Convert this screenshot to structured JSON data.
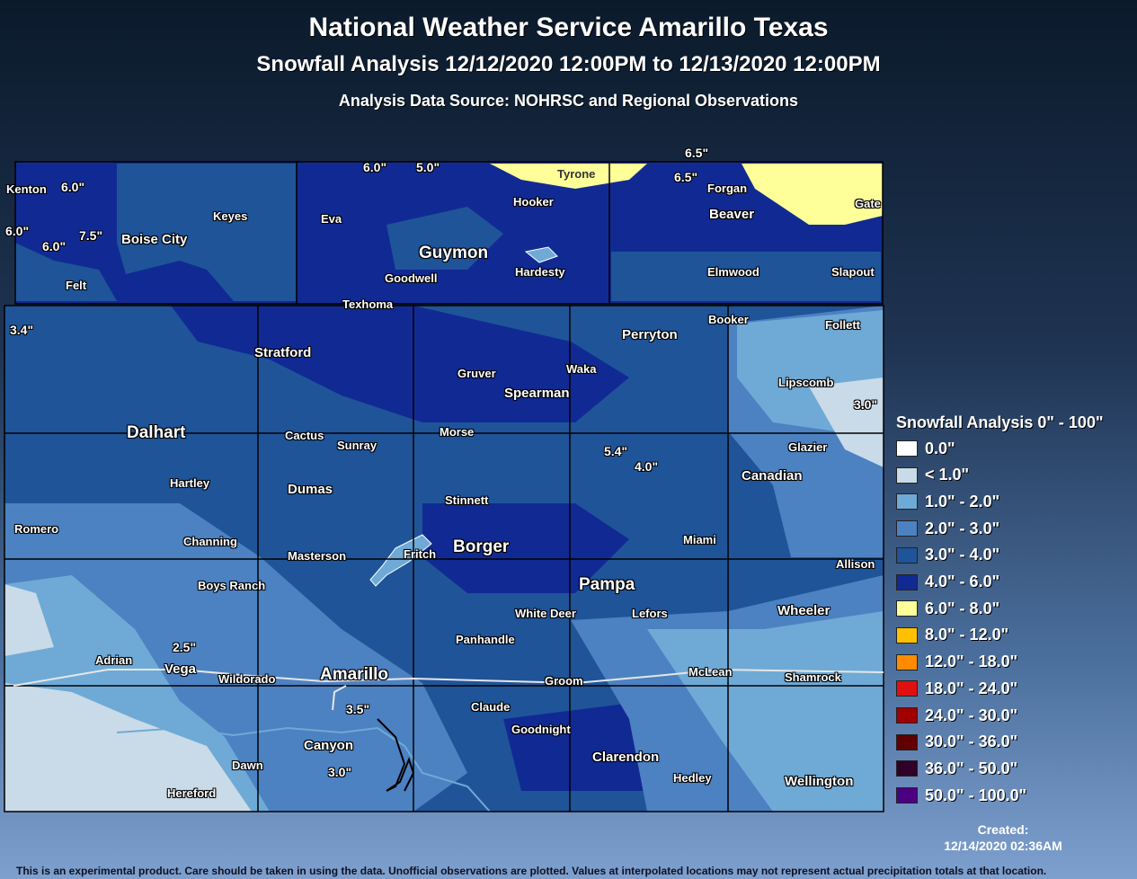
{
  "title": "National Weather Service Amarillo Texas",
  "subtitle": "Snowfall Analysis 12/12/2020 12:00PM to 12/13/2020 12:00PM",
  "source": "Analysis Data Source: NOHRSC and Regional Observations",
  "legend": {
    "title": "Snowfall Analysis 0\" - 100\"",
    "items": [
      {
        "label": "0.0\"",
        "color": "#ffffff"
      },
      {
        "label": "< 1.0\"",
        "color": "#c9dbe8"
      },
      {
        "label": "1.0\" - 2.0\"",
        "color": "#6faad6"
      },
      {
        "label": "2.0\" - 3.0\"",
        "color": "#4c82c2"
      },
      {
        "label": "3.0\" - 4.0\"",
        "color": "#1f5499"
      },
      {
        "label": "4.0\" - 6.0\"",
        "color": "#112a93"
      },
      {
        "label": "6.0\" - 8.0\"",
        "color": "#ffff99"
      },
      {
        "label": "8.0\" - 12.0\"",
        "color": "#ffc000"
      },
      {
        "label": "12.0\" - 18.0\"",
        "color": "#ff8c00"
      },
      {
        "label": "18.0\" - 24.0\"",
        "color": "#e01010"
      },
      {
        "label": "24.0\" - 30.0\"",
        "color": "#a00000"
      },
      {
        "label": "30.0\" - 36.0\"",
        "color": "#600000"
      },
      {
        "label": "36.0\" - 50.0\"",
        "color": "#300028"
      },
      {
        "label": "50.0\" - 100.0\"",
        "color": "#4b0082"
      }
    ]
  },
  "created": {
    "label": "Created:",
    "date": "12/14/2020 02:36AM"
  },
  "disclaimer": "This is an experimental product. Care should be taken in using the data. Unofficial observations are plotted. Values at interpolated locations may not represent actual precipitation totals at that location.",
  "places": {
    "kenton": "Kenton",
    "boise_city": "Boise City",
    "keyes": "Keyes",
    "felt": "Felt",
    "eva": "Eva",
    "guymon": "Guymon",
    "goodwell": "Goodwell",
    "hooker": "Hooker",
    "tyrone": "Tyrone",
    "hardesty": "Hardesty",
    "texhoma": "Texhoma",
    "forgan": "Forgan",
    "beaver": "Beaver",
    "gate": "Gate",
    "elmwood": "Elmwood",
    "slapout": "Slapout",
    "stratford": "Stratford",
    "dalhart": "Dalhart",
    "hartley": "Hartley",
    "romero": "Romero",
    "cactus": "Cactus",
    "sunray": "Sunray",
    "dumas": "Dumas",
    "channing": "Channing",
    "masterson": "Masterson",
    "boys_ranch": "Boys Ranch",
    "gruver": "Gruver",
    "spearman": "Spearman",
    "waka": "Waka",
    "morse": "Morse",
    "stinnett": "Stinnett",
    "fritch": "Fritch",
    "borger": "Borger",
    "perryton": "Perryton",
    "booker": "Booker",
    "follett": "Follett",
    "lipscomb": "Lipscomb",
    "glazier": "Glazier",
    "canadian": "Canadian",
    "miami": "Miami",
    "pampa": "Pampa",
    "white_deer": "White Deer",
    "lefors": "Lefors",
    "allison": "Allison",
    "wheeler": "Wheeler",
    "panhandle": "Panhandle",
    "adrian": "Adrian",
    "vega": "Vega",
    "wildorado": "Wildorado",
    "amarillo": "Amarillo",
    "groom": "Groom",
    "mclean": "McLean",
    "shamrock": "Shamrock",
    "claude": "Claude",
    "goodnight": "Goodnight",
    "canyon": "Canyon",
    "dawn": "Dawn",
    "hereford": "Hereford",
    "clarendon": "Clarendon",
    "hedley": "Hedley",
    "wellington": "Wellington"
  },
  "observations": {
    "o1": "6.0\"",
    "o2": "6.0\"",
    "o3": "7.5\"",
    "o4": "6.0\"",
    "o5": "6.0\"",
    "o6": "5.0\"",
    "o7": "6.5\"",
    "o8": "6.5\"",
    "o9": "3.4\"",
    "o10": "3.0\"",
    "o11": "5.4\"",
    "o12": "4.0\"",
    "o13": "2.5\"",
    "o14": "3.5\"",
    "o15": "3.0\""
  }
}
